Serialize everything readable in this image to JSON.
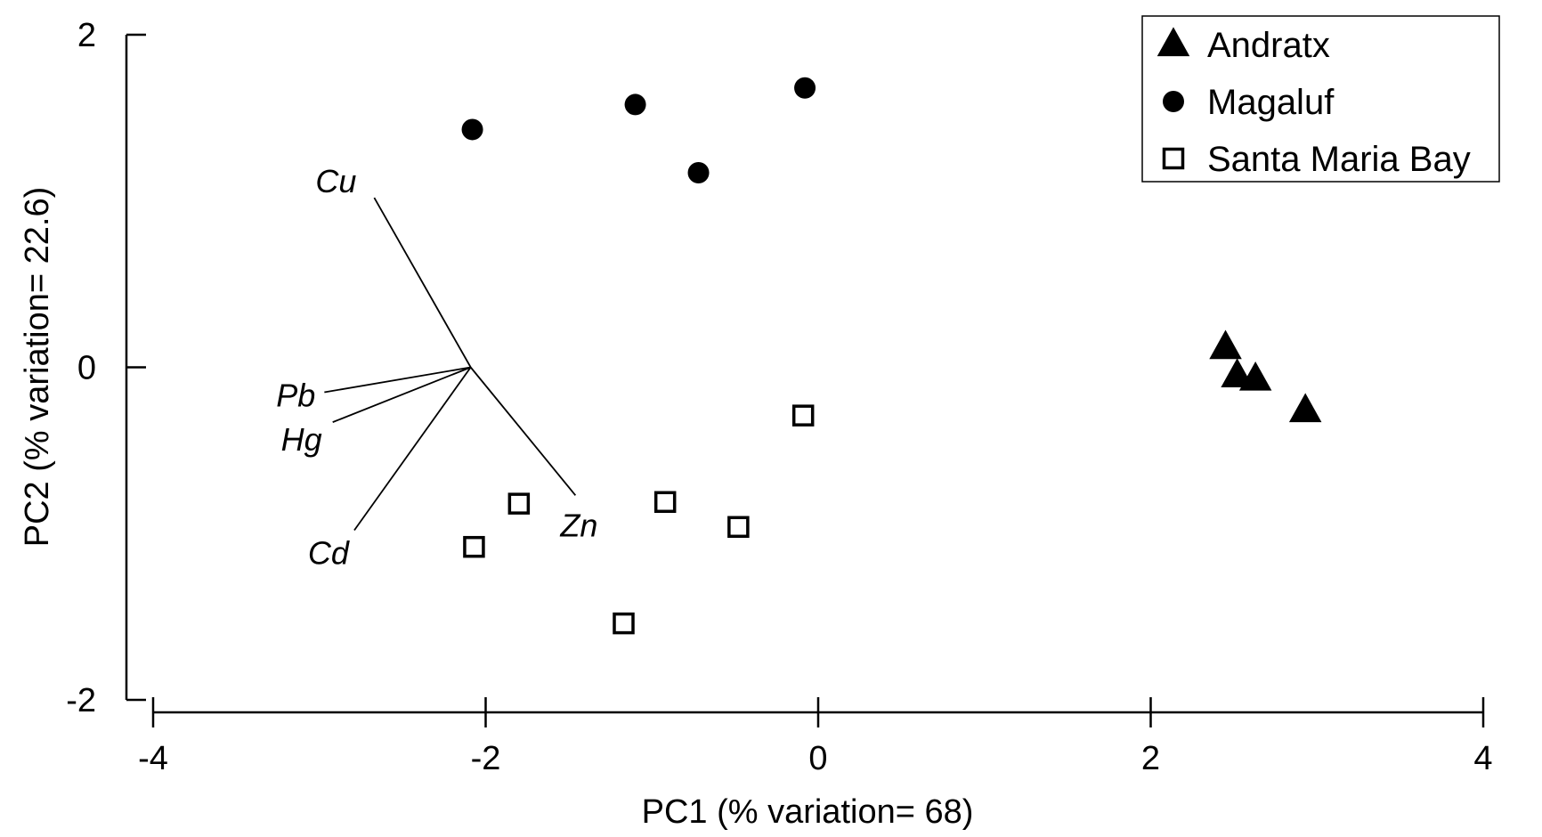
{
  "chart_data": {
    "type": "scatter",
    "title": "",
    "xlabel": "PC1 (% variation= 68)",
    "ylabel": "PC2 (% variation= 22.6)",
    "xlim": [
      -4,
      4
    ],
    "ylim": [
      -2,
      2
    ],
    "x_ticks": [
      -4,
      -2,
      0,
      2,
      4
    ],
    "y_ticks": [
      -2,
      0,
      2
    ],
    "x_tick_labels": [
      "-4",
      "-2",
      "0",
      "2",
      "4"
    ],
    "y_tick_labels": [
      "-2",
      "0",
      "2"
    ],
    "grid": false,
    "legend": {
      "position": "top-right"
    },
    "series": [
      {
        "name": "Andratx",
        "marker": "triangle-filled",
        "points": [
          {
            "x": 2.45,
            "y": 0.12
          },
          {
            "x": 2.52,
            "y": -0.05
          },
          {
            "x": 2.63,
            "y": -0.07
          },
          {
            "x": 2.93,
            "y": -0.26
          }
        ]
      },
      {
        "name": "Magaluf",
        "marker": "circle-filled",
        "points": [
          {
            "x": -2.08,
            "y": 1.43
          },
          {
            "x": -1.1,
            "y": 1.58
          },
          {
            "x": -0.72,
            "y": 1.17
          },
          {
            "x": -0.08,
            "y": 1.68
          }
        ]
      },
      {
        "name": "Santa Maria Bay",
        "marker": "square-open",
        "points": [
          {
            "x": -2.07,
            "y": -1.08
          },
          {
            "x": -1.8,
            "y": -0.82
          },
          {
            "x": -1.17,
            "y": -1.54
          },
          {
            "x": -0.92,
            "y": -0.81
          },
          {
            "x": -0.48,
            "y": -0.96
          },
          {
            "x": -0.09,
            "y": -0.29
          }
        ]
      }
    ],
    "vectors": {
      "origin": {
        "x": -2.09,
        "y": 0.0
      },
      "items": [
        {
          "label": "Cu",
          "x": -2.67,
          "y": 1.02
        },
        {
          "label": "Pb",
          "x": -2.97,
          "y": -0.15
        },
        {
          "label": "Hg",
          "x": -2.92,
          "y": -0.33
        },
        {
          "label": "Cd",
          "x": -2.79,
          "y": -0.98
        },
        {
          "label": "Zn",
          "x": -1.46,
          "y": -0.77
        }
      ]
    },
    "colors": {
      "marker": "#000000",
      "background": "#ffffff"
    }
  }
}
